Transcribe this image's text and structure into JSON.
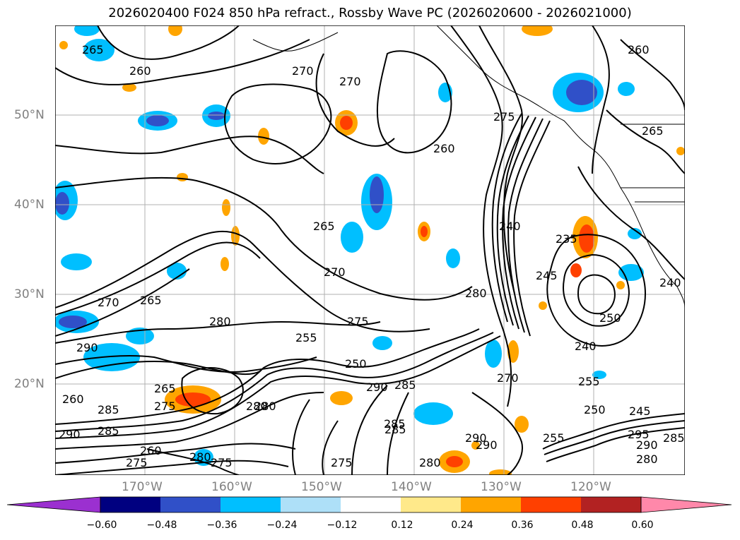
{
  "title": "2026020400 F024 850 hPa refract., Rossby Wave PC (2026020600 - 2026021000)",
  "latitude_labels": [
    "50°N",
    "40°N",
    "30°N",
    "20°N"
  ],
  "longitude_labels": [
    "170°W",
    "160°W",
    "150°W",
    "140°W",
    "130°W",
    "120°W"
  ],
  "colorbar": {
    "tick_labels": [
      "−0.60",
      "−0.48",
      "−0.36",
      "−0.24",
      "−0.12",
      "0.12",
      "0.24",
      "0.36",
      "0.48",
      "0.60"
    ],
    "colors": [
      "#9b30d0",
      "#000080",
      "#3050c8",
      "#00bfff",
      "#aee0f8",
      "#ffffff",
      "#ffe98a",
      "#ffa500",
      "#ff4000",
      "#b22222",
      "#ff88aa"
    ]
  },
  "contour_labels": [
    "265",
    "260",
    "270",
    "270",
    "260",
    "275",
    "265",
    "240",
    "235",
    "270",
    "245",
    "250",
    "240",
    "240",
    "280",
    "270",
    "275",
    "255",
    "250",
    "290",
    "285",
    "270",
    "265",
    "280",
    "290",
    "280",
    "285",
    "290",
    "250",
    "245",
    "295",
    "290",
    "280",
    "285",
    "285",
    "275",
    "260",
    "280",
    "290",
    "285",
    "260",
    "255",
    "275",
    "265",
    "260",
    "255",
    "285",
    "290",
    "280",
    "265",
    "280",
    "275",
    "275"
  ],
  "map": {
    "land_outline_color": "#000000",
    "contour_color": "#000000",
    "gridline_color": "#b0b0b0"
  }
}
